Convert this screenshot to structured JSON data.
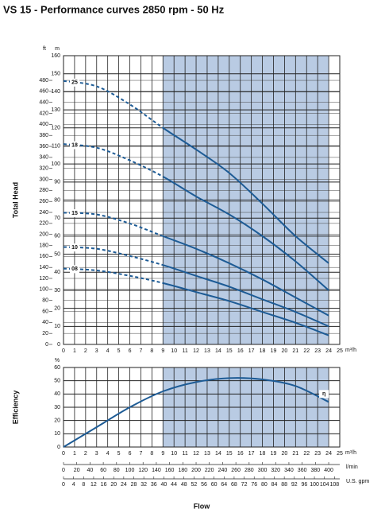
{
  "chart_data": [
    {
      "type": "line",
      "title": "VS 15 - Performance curves 2850 rpm - 50 Hz",
      "y_label": "Total Head",
      "y_unit": "m",
      "ylim": [
        0,
        160
      ],
      "yticks": [
        0,
        10,
        20,
        30,
        40,
        50,
        60,
        70,
        80,
        90,
        100,
        110,
        120,
        130,
        140,
        150,
        160
      ],
      "y2_unit": "ft",
      "y2lim": [
        0,
        524.9
      ],
      "y2ticks": [
        0,
        20,
        40,
        60,
        80,
        100,
        120,
        140,
        160,
        180,
        200,
        220,
        240,
        260,
        280,
        300,
        320,
        340,
        360,
        380,
        400,
        420,
        440,
        460,
        480
      ],
      "x_unit": "m³/h",
      "xlim": [
        0,
        25
      ],
      "xticks": [
        0,
        1,
        2,
        3,
        4,
        5,
        6,
        7,
        8,
        9,
        10,
        11,
        12,
        13,
        14,
        15,
        16,
        17,
        18,
        19,
        20,
        21,
        22,
        23,
        24,
        25
      ],
      "shaded_range": [
        9,
        24
      ],
      "shade_color": "#b9cbe3",
      "dashed_before_range": true,
      "grid": true,
      "x": [
        0,
        3,
        6,
        9,
        12,
        15,
        18,
        21,
        24
      ],
      "series": [
        {
          "name": "25",
          "color": "#1d5b95",
          "values": [
            146,
            143,
            133,
            120,
            108,
            95,
            78,
            60,
            45
          ]
        },
        {
          "name": "18",
          "color": "#1d5b95",
          "values": [
            111,
            109,
            102,
            93,
            82,
            72,
            60,
            46,
            30
          ]
        },
        {
          "name": "15",
          "color": "#1d5b95",
          "values": [
            73,
            72,
            67,
            60,
            53,
            45,
            36,
            26,
            16
          ]
        },
        {
          "name": "10",
          "color": "#1d5b95",
          "values": [
            54,
            53,
            49,
            44,
            38,
            32,
            25,
            18,
            10
          ]
        },
        {
          "name": "08",
          "color": "#1d5b95",
          "values": [
            42,
            41,
            38,
            34,
            29,
            24,
            18,
            12,
            5
          ]
        }
      ]
    },
    {
      "type": "line",
      "y_label": "Efficiency",
      "y_unit": "%",
      "ylim": [
        0,
        60
      ],
      "yticks": [
        0,
        10,
        20,
        30,
        40,
        50,
        60
      ],
      "x_unit": "m³/h",
      "xlim": [
        0,
        25
      ],
      "xticks": [
        0,
        1,
        2,
        3,
        4,
        5,
        6,
        7,
        8,
        9,
        10,
        11,
        12,
        13,
        14,
        15,
        16,
        17,
        18,
        19,
        20,
        21,
        22,
        23,
        24,
        25
      ],
      "shaded_range": [
        9,
        24
      ],
      "shade_color": "#b9cbe3",
      "dashed_before_range": false,
      "grid": true,
      "x": [
        0,
        3,
        6,
        9,
        12,
        15,
        18,
        21,
        24
      ],
      "series": [
        {
          "name": "η",
          "color": "#1d5b95",
          "values": [
            0,
            15,
            30,
            42,
            49,
            52,
            51,
            46,
            34
          ]
        }
      ],
      "x_label": "Flow",
      "flow_axes": [
        {
          "unit": "l/min",
          "xlim": [
            0,
            416.7
          ],
          "xticks": [
            0,
            20,
            40,
            60,
            80,
            100,
            120,
            140,
            160,
            180,
            200,
            220,
            240,
            260,
            280,
            300,
            320,
            340,
            360,
            380,
            400
          ]
        },
        {
          "unit": "U.S. gpm",
          "xlim": [
            0,
            110.1
          ],
          "xticks": [
            0,
            4,
            8,
            12,
            16,
            20,
            24,
            28,
            32,
            36,
            40,
            44,
            48,
            52,
            56,
            60,
            64,
            68,
            72,
            76,
            80,
            84,
            88,
            92,
            96,
            100,
            104,
            108
          ]
        }
      ]
    }
  ]
}
